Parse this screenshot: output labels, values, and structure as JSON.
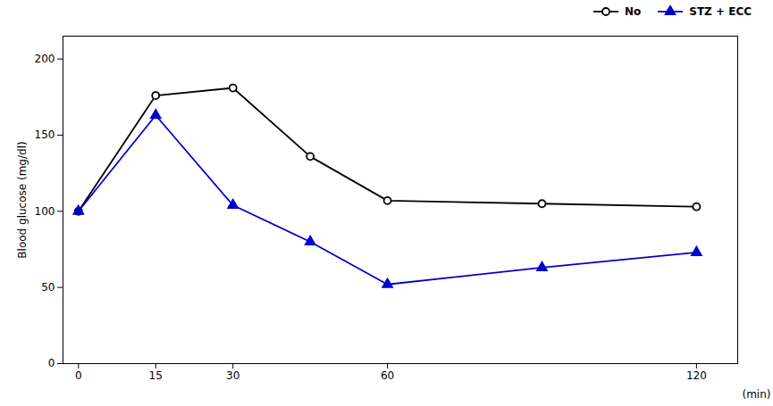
{
  "chart_data": {
    "type": "line",
    "x": [
      0,
      15,
      30,
      45,
      60,
      90,
      120
    ],
    "series": [
      {
        "name": "No",
        "color": "#000000",
        "marker": "circle",
        "values": [
          100,
          176,
          181,
          136,
          107,
          105,
          103
        ]
      },
      {
        "name": "STZ + ECC",
        "color": "#0000cc",
        "marker": "triangle",
        "values": [
          100,
          163,
          104,
          80,
          52,
          63,
          73
        ]
      }
    ],
    "xlabel": "(min)",
    "ylabel": "Blood glucose (mg/dl)",
    "xlim": [
      -3,
      128
    ],
    "xticks": [
      0,
      15,
      30,
      60,
      120
    ],
    "ylim": [
      0,
      215
    ],
    "yticks": [
      0,
      50,
      100,
      150,
      200
    ],
    "grid": false,
    "legend": "upper right"
  }
}
